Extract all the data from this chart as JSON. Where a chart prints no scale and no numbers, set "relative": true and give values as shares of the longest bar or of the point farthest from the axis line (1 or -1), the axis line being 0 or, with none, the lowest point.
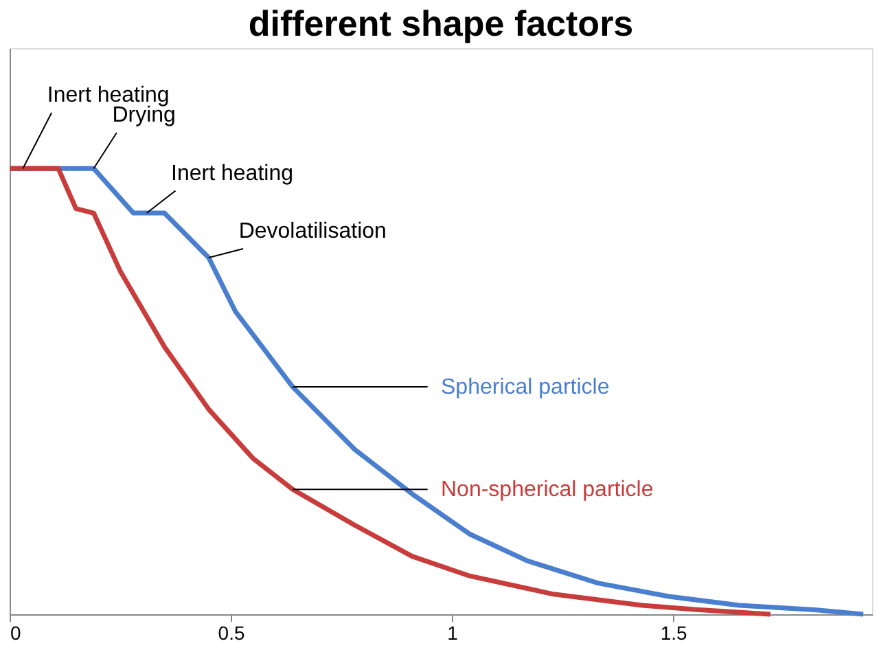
{
  "chart_data": {
    "type": "line",
    "title": "different shape factors",
    "relative": true,
    "xlim": [
      0,
      1.95
    ],
    "xticks": [
      0,
      0.5,
      1,
      1.5
    ],
    "grid": false,
    "legend": false,
    "marker": "none",
    "line_style": "solid",
    "series": [
      {
        "name": "Spherical particle",
        "color": "#4a7ecf",
        "x": [
          0,
          0.19,
          0.28,
          0.35,
          0.45,
          0.51,
          0.64,
          0.78,
          0.91,
          1.04,
          1.17,
          1.33,
          1.49,
          1.65,
          1.82,
          1.93
        ],
        "values": [
          1.0,
          1.0,
          0.9,
          0.9,
          0.8,
          0.68,
          0.51,
          0.37,
          0.27,
          0.18,
          0.12,
          0.07,
          0.04,
          0.02,
          0.01,
          0.0
        ]
      },
      {
        "name": "Non-spherical particle",
        "color": "#c83c3c",
        "x": [
          0,
          0.11,
          0.15,
          0.19,
          0.25,
          0.35,
          0.45,
          0.55,
          0.64,
          0.78,
          0.91,
          1.04,
          1.23,
          1.43,
          1.56,
          1.72
        ],
        "values": [
          1.0,
          1.0,
          0.91,
          0.9,
          0.77,
          0.6,
          0.46,
          0.35,
          0.28,
          0.2,
          0.13,
          0.086,
          0.045,
          0.02,
          0.01,
          0.0
        ]
      }
    ],
    "annotations": [
      {
        "text": "Inert heating",
        "x": 0.03,
        "y": 1.0
      },
      {
        "text": "Drying",
        "x": 0.19,
        "y": 1.0
      },
      {
        "text": "Inert heating",
        "x": 0.31,
        "y": 0.9
      },
      {
        "text": "Devolatilisation",
        "x": 0.45,
        "y": 0.8
      }
    ]
  }
}
